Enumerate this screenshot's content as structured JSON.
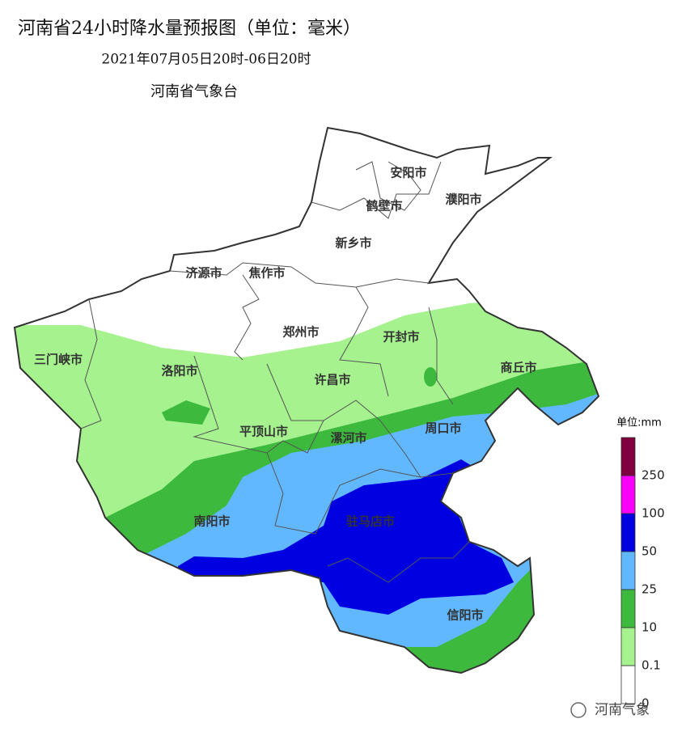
{
  "header": {
    "title": "河南省24小时降水量预报图（单位：毫米）",
    "period": "2021年07月05日20时-06日20时",
    "issuer": "河南省气象台"
  },
  "cities": [
    "安阳市",
    "鹤壁市",
    "濮阳市",
    "新乡市",
    "济源市",
    "焦作市",
    "郑州市",
    "开封市",
    "三门峡市",
    "洛阳市",
    "许昌市",
    "商丘市",
    "平顶山市",
    "漯河市",
    "周口市",
    "南阳市",
    "驻马店市",
    "信阳市"
  ],
  "legend": {
    "title": "单位:mm",
    "ticks": [
      0,
      0.1,
      10,
      25,
      50,
      100,
      250
    ],
    "colors": [
      "#ffffff",
      "#a6f28f",
      "#3dba3d",
      "#61b8ff",
      "#0000e1",
      "#fa00fa",
      "#800040"
    ]
  },
  "watermark": "河南气象"
}
